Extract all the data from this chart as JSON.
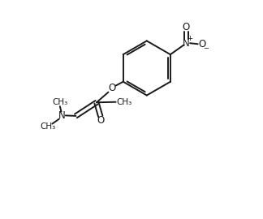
{
  "bg_color": "#ffffff",
  "line_color": "#1a1a1a",
  "line_width": 1.4,
  "font_size": 8.5,
  "fig_width": 3.24,
  "fig_height": 2.7,
  "dpi": 100,
  "xlim": [
    0,
    10
  ],
  "ylim": [
    0,
    10
  ]
}
